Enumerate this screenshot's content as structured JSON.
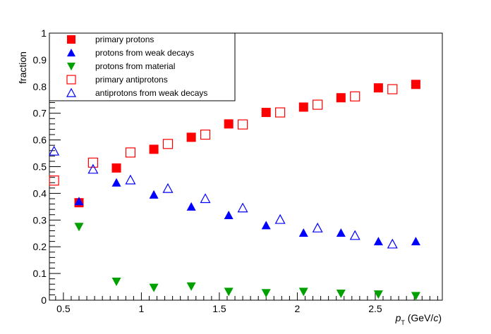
{
  "chart_data": {
    "type": "scatter",
    "title": "",
    "ylabel": "fraction",
    "xlabel": {
      "main": "p",
      "sub": "T",
      "unit_prefix": " (GeV/",
      "unit_italic": "c",
      "unit_suffix": ")"
    },
    "xlim": [
      0.41,
      2.93
    ],
    "ylim": [
      0,
      1
    ],
    "xticks": [
      0.5,
      1,
      1.5,
      2,
      2.5
    ],
    "xtick_labels": [
      "0.5",
      "1",
      "1.5",
      "2",
      "2.5"
    ],
    "yticks": [
      0,
      0.1,
      0.2,
      0.3,
      0.4,
      0.5,
      0.6,
      0.7,
      0.8,
      0.9,
      1
    ],
    "ytick_labels": [
      "0",
      "0.1",
      "0.2",
      "0.3",
      "0.4",
      "0.5",
      "0.6",
      "0.7",
      "0.8",
      "0.9",
      "1"
    ],
    "grid": false,
    "legend_position": "top-left",
    "series": [
      {
        "name": "primary protons",
        "marker": "square-filled",
        "color": "#ff0000",
        "x": [
          0.6,
          0.84,
          1.08,
          1.32,
          1.56,
          1.8,
          2.04,
          2.28,
          2.52,
          2.76
        ],
        "y": [
          0.365,
          0.495,
          0.565,
          0.61,
          0.66,
          0.703,
          0.723,
          0.758,
          0.795,
          0.808
        ]
      },
      {
        "name": "protons from weak decays",
        "marker": "triangle-up-filled",
        "color": "#0000ff",
        "x": [
          0.6,
          0.84,
          1.08,
          1.32,
          1.56,
          1.8,
          2.04,
          2.28,
          2.52,
          2.76
        ],
        "y": [
          0.37,
          0.44,
          0.395,
          0.35,
          0.318,
          0.28,
          0.252,
          0.252,
          0.22,
          0.22
        ]
      },
      {
        "name": "protons from material",
        "marker": "triangle-down-filled",
        "color": "#00a000",
        "x": [
          0.6,
          0.84,
          1.08,
          1.32,
          1.56,
          1.8,
          2.04,
          2.28,
          2.52,
          2.76
        ],
        "y": [
          0.275,
          0.07,
          0.047,
          0.052,
          0.032,
          0.027,
          0.032,
          0.025,
          0.022,
          0.016
        ]
      },
      {
        "name": "primary antiprotons",
        "marker": "square-open",
        "color": "#ff0000",
        "x": [
          0.44,
          0.69,
          0.93,
          1.17,
          1.41,
          1.65,
          1.89,
          2.13,
          2.37,
          2.61
        ],
        "y": [
          0.448,
          0.515,
          0.553,
          0.585,
          0.62,
          0.658,
          0.703,
          0.732,
          0.763,
          0.79
        ]
      },
      {
        "name": "antiprotons from weak decays",
        "marker": "triangle-up-open",
        "color": "#0000ff",
        "x": [
          0.44,
          0.69,
          0.93,
          1.17,
          1.41,
          1.65,
          1.89,
          2.13,
          2.37,
          2.61
        ],
        "y": [
          0.558,
          0.49,
          0.45,
          0.418,
          0.38,
          0.345,
          0.302,
          0.27,
          0.242,
          0.21
        ]
      }
    ]
  }
}
